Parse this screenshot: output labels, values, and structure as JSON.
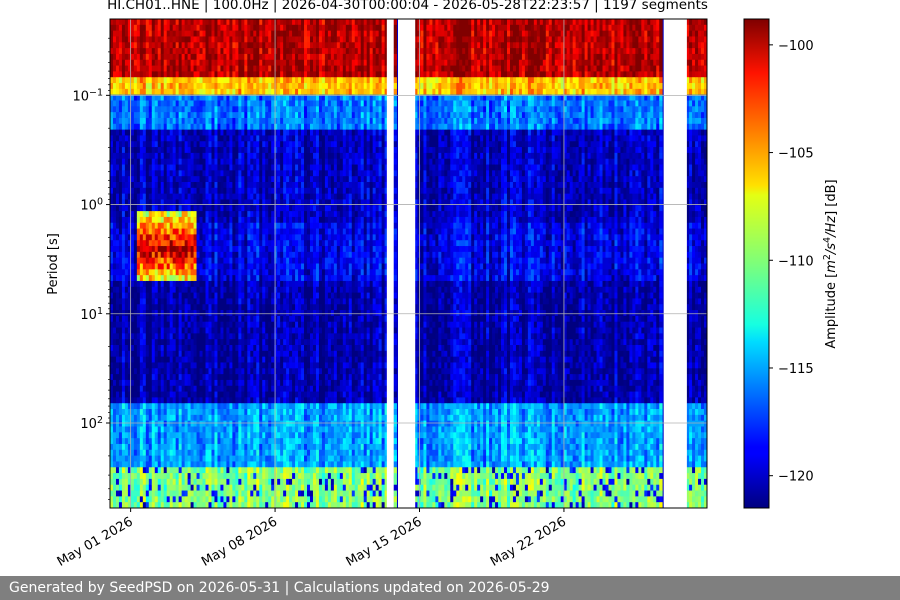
{
  "chart_data": {
    "type": "heatmap",
    "title": "HI.CH01..HNE | 100.0Hz | 2026-04-30T00:00:04 - 2026-05-28T22:23:57 | 1197 segments",
    "xlabel": "",
    "ylabel": "Period [s]",
    "x_axis": {
      "type": "date",
      "range": [
        "2026-04-30T00:00:04",
        "2026-05-28T22:23:57"
      ],
      "ticks": [
        "May 01 2026",
        "May 08 2026",
        "May 15 2026",
        "May 22 2026"
      ],
      "tick_values": [
        "2026-05-01",
        "2026-05-08",
        "2026-05-15",
        "2026-05-22"
      ]
    },
    "y_axis": {
      "scale": "log",
      "inverted": true,
      "range": [
        0.02,
        600
      ],
      "ticks": [
        0.1,
        1,
        10,
        100
      ],
      "tick_labels": [
        {
          "base": "10",
          "exp": "−1"
        },
        {
          "base": "10",
          "exp": "0"
        },
        {
          "base": "10",
          "exp": "1"
        },
        {
          "base": "10",
          "exp": "2"
        }
      ]
    },
    "colorbar": {
      "label_prefix": "Amplitude [",
      "label_suffix": "] [dB]",
      "unit_parts": [
        {
          "t": "m",
          "sup": false
        },
        {
          "t": "2",
          "sup": true
        },
        {
          "t": "/s",
          "sup": false
        },
        {
          "t": "4",
          "sup": true
        },
        {
          "t": "/Hz",
          "sup": false
        }
      ],
      "range": [
        -121.5,
        -98.8
      ],
      "colormap": "jet",
      "ticks": [
        -100,
        -105,
        -110,
        -115,
        -120
      ],
      "tick_labels": [
        "−100",
        "−105",
        "−110",
        "−115",
        "−120"
      ]
    },
    "grid": true,
    "data_gaps": [
      {
        "start": "2026-05-13T10:00",
        "end": "2026-05-13T18:00"
      },
      {
        "start": "2026-05-13T23:00",
        "end": "2026-05-14T19:00"
      },
      {
        "start": "2026-05-26T20:00",
        "end": "2026-05-27T23:00"
      }
    ],
    "spectral_bands": [
      {
        "period_range": [
          0.02,
          0.07
        ],
        "level_db": -100
      },
      {
        "period_range": [
          0.07,
          0.1
        ],
        "level_db": -106
      },
      {
        "period_range": [
          0.1,
          0.2
        ],
        "level_db": -116
      },
      {
        "period_range": [
          0.2,
          1.5
        ],
        "level_db": -120
      },
      {
        "period_range": [
          1.5,
          5
        ],
        "level_db": -119
      },
      {
        "period_range": [
          5,
          70
        ],
        "level_db": -120.5
      },
      {
        "period_range": [
          70,
          250
        ],
        "level_db": -115
      },
      {
        "period_range": [
          250,
          600
        ],
        "level_db": -110
      }
    ],
    "features": [
      {
        "description": "microseism peak",
        "period": 2.5,
        "window": [
          "2026-05-01T06:00",
          "2026-05-04T06:00"
        ],
        "level_db": -100
      }
    ]
  },
  "footer": {
    "text": "Generated by SeedPSD on 2026-05-31 | Calculations updated on 2026-05-29"
  }
}
